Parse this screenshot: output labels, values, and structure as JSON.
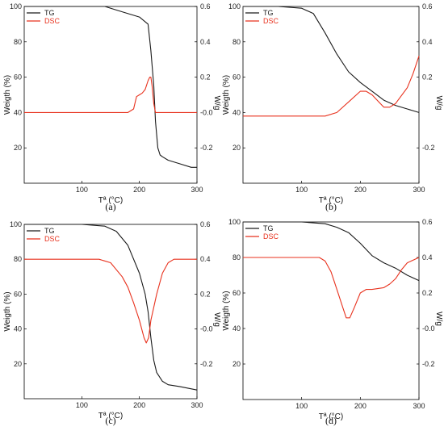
{
  "colors": {
    "tg": "#1a1a1a",
    "dsc": "#e8321e"
  },
  "chart_data": [
    {
      "type": "line",
      "caption": "(a)",
      "xlabel": "Tª (°C)",
      "ylabel": "Weigth (%)",
      "y2label": "W/g",
      "xlim": [
        0,
        300
      ],
      "ylim": [
        0,
        100
      ],
      "y2lim": [
        -0.4,
        0.6
      ],
      "xticks": [
        "100",
        "200",
        "300"
      ],
      "yticks": [
        "20",
        "40",
        "60",
        "80",
        "100"
      ],
      "y2ticks": [
        "-0.2",
        "-0.0",
        "0.2",
        "0.4",
        "0.6"
      ],
      "legend": [
        "TG",
        "DSC"
      ],
      "series": [
        {
          "name": "TG",
          "axis": "left",
          "x": [
            0,
            100,
            140,
            170,
            200,
            215,
            220,
            225,
            228,
            232,
            236,
            240,
            250,
            270,
            290,
            300
          ],
          "y": [
            100,
            100,
            100,
            97,
            94,
            90,
            75,
            55,
            35,
            20,
            16,
            15,
            13,
            11,
            9,
            9
          ]
        },
        {
          "name": "DSC",
          "axis": "right",
          "x": [
            0,
            100,
            150,
            180,
            190,
            195,
            200,
            205,
            210,
            215,
            218,
            220,
            222,
            225,
            228,
            232,
            240,
            300
          ],
          "y": [
            0.0,
            0.0,
            0.0,
            0.0,
            0.02,
            0.09,
            0.1,
            0.11,
            0.13,
            0.18,
            0.2,
            0.2,
            0.15,
            0.05,
            0.0,
            0.0,
            0.0,
            0.0
          ]
        }
      ]
    },
    {
      "type": "line",
      "caption": "(b)",
      "xlabel": "Tª (°C)",
      "ylabel": "Weigth (%)",
      "y2label": "W/g",
      "xlim": [
        0,
        300
      ],
      "ylim": [
        0,
        100
      ],
      "y2lim": [
        -0.4,
        0.6
      ],
      "xticks": [
        "100",
        "200",
        "300"
      ],
      "yticks": [
        "20",
        "40",
        "60",
        "80",
        "100"
      ],
      "y2ticks": [
        "-0.2",
        "0.2",
        "0.4",
        "0.6"
      ],
      "legend": [
        "TG",
        "DSC"
      ],
      "series": [
        {
          "name": "TG",
          "axis": "left",
          "x": [
            0,
            60,
            100,
            120,
            140,
            160,
            180,
            200,
            220,
            240,
            260,
            280,
            300
          ],
          "y": [
            100,
            100,
            99,
            96,
            85,
            73,
            63,
            57,
            52,
            47,
            44,
            42,
            40
          ]
        },
        {
          "name": "DSC",
          "axis": "right",
          "x": [
            0,
            100,
            140,
            160,
            180,
            200,
            210,
            220,
            240,
            250,
            260,
            280,
            290,
            300
          ],
          "y": [
            -0.02,
            -0.02,
            -0.02,
            0.0,
            0.06,
            0.12,
            0.12,
            0.1,
            0.03,
            0.03,
            0.05,
            0.14,
            0.22,
            0.32
          ]
        }
      ]
    },
    {
      "type": "line",
      "caption": "(c)",
      "xlabel": "Tª (°C)",
      "ylabel": "Weigth (%)",
      "y2label": "W/g",
      "xlim": [
        0,
        300
      ],
      "ylim": [
        0,
        100
      ],
      "y2lim": [
        -0.4,
        0.6
      ],
      "xticks": [
        "100",
        "200",
        "300"
      ],
      "yticks": [
        "20",
        "40",
        "60",
        "80",
        "100"
      ],
      "y2ticks": [
        "-0.2",
        "-0.0",
        "0.2",
        "0.4",
        "0.6"
      ],
      "legend": [
        "TG",
        "DSC"
      ],
      "series": [
        {
          "name": "TG",
          "axis": "left",
          "x": [
            0,
            100,
            140,
            160,
            180,
            200,
            210,
            215,
            220,
            225,
            230,
            240,
            250,
            270,
            300
          ],
          "y": [
            100,
            100,
            99,
            96,
            88,
            72,
            60,
            50,
            35,
            22,
            15,
            10,
            8,
            7,
            5
          ]
        },
        {
          "name": "DSC",
          "axis": "right",
          "x": [
            0,
            100,
            130,
            150,
            170,
            180,
            190,
            200,
            208,
            212,
            216,
            220,
            230,
            240,
            250,
            260,
            270,
            300
          ],
          "y": [
            0.4,
            0.4,
            0.4,
            0.38,
            0.3,
            0.24,
            0.15,
            0.05,
            -0.05,
            -0.08,
            -0.05,
            0.05,
            0.2,
            0.32,
            0.38,
            0.4,
            0.4,
            0.4
          ]
        }
      ]
    },
    {
      "type": "line",
      "caption": "(d)",
      "xlabel": "Tª (°C)",
      "ylabel": "Weigth (%)",
      "y2label": "W/g",
      "xlim": [
        0,
        300
      ],
      "ylim": [
        0,
        100
      ],
      "y2lim": [
        -0.4,
        0.6
      ],
      "xticks": [
        "100",
        "200",
        "300"
      ],
      "yticks": [
        "20",
        "40",
        "60",
        "80",
        "100"
      ],
      "y2ticks": [
        "-0.2",
        "-0.0",
        "0.2",
        "0.4",
        "0.6"
      ],
      "legend": [
        "TG",
        "DSC"
      ],
      "series": [
        {
          "name": "TG",
          "axis": "left",
          "x": [
            0,
            100,
            140,
            160,
            180,
            200,
            220,
            240,
            260,
            280,
            300
          ],
          "y": [
            100,
            100,
            99,
            97,
            94,
            88,
            81,
            77,
            74,
            70,
            67
          ]
        },
        {
          "name": "DSC",
          "axis": "right",
          "x": [
            0,
            100,
            130,
            140,
            150,
            160,
            170,
            176,
            182,
            190,
            200,
            210,
            220,
            240,
            250,
            260,
            270,
            280,
            300
          ],
          "y": [
            0.4,
            0.4,
            0.4,
            0.38,
            0.32,
            0.22,
            0.12,
            0.06,
            0.06,
            0.12,
            0.2,
            0.22,
            0.22,
            0.23,
            0.25,
            0.28,
            0.33,
            0.37,
            0.4
          ]
        }
      ]
    }
  ]
}
